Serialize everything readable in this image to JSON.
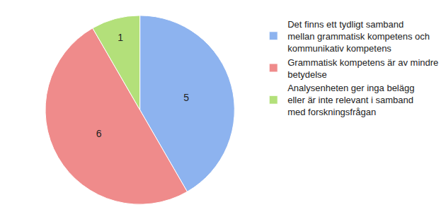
{
  "chart_data": {
    "type": "pie",
    "categories": [
      "Det finns ett tydligt samband mellan grammatisk kompetens och kommunikativ kompetens",
      "Grammatisk kompetens är av mindre betydelse",
      "Analysenheten ger inga belägg eller är inte relevant i samband med forskningsfrågan"
    ],
    "values": [
      5,
      6,
      1
    ],
    "colors": [
      "#8db3ef",
      "#ef8b8b",
      "#b3e07a"
    ],
    "data_labels": true,
    "legend": "right"
  }
}
